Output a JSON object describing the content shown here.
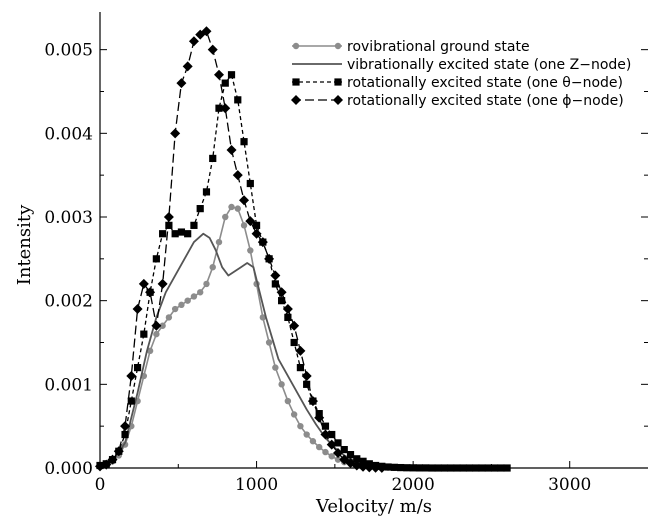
{
  "chart_data": {
    "type": "line",
    "xlabel": "Velocity/  m/s",
    "ylabel": "Intensity",
    "xlim": [
      0,
      3500
    ],
    "ylim": [
      0,
      0.00545
    ],
    "xticks": [
      0,
      1000,
      2000,
      3000
    ],
    "xtick_labels": [
      "0",
      "1000",
      "2000",
      "3000"
    ],
    "yticks": [
      0.0,
      0.001,
      0.002,
      0.003,
      0.004,
      0.005
    ],
    "ytick_labels": [
      "0.000",
      "0.001",
      "0.002",
      "0.003",
      "0.004",
      "0.005"
    ],
    "grid": false,
    "legend_position": "top-right",
    "series": [
      {
        "name": "rovibrational ground state",
        "style": "solid-circle",
        "color": "#8c8c8c",
        "points": [
          [
            0,
            2e-05
          ],
          [
            40,
            4e-05
          ],
          [
            80,
            8e-05
          ],
          [
            120,
            0.00015
          ],
          [
            160,
            0.00028
          ],
          [
            200,
            0.0005
          ],
          [
            240,
            0.0008
          ],
          [
            280,
            0.0011
          ],
          [
            320,
            0.0014
          ],
          [
            360,
            0.0016
          ],
          [
            400,
            0.0017
          ],
          [
            440,
            0.0018
          ],
          [
            480,
            0.0019
          ],
          [
            520,
            0.00195
          ],
          [
            560,
            0.002
          ],
          [
            600,
            0.00205
          ],
          [
            640,
            0.0021
          ],
          [
            680,
            0.0022
          ],
          [
            720,
            0.0024
          ],
          [
            760,
            0.0027
          ],
          [
            800,
            0.003
          ],
          [
            840,
            0.00312
          ],
          [
            880,
            0.0031
          ],
          [
            920,
            0.0029
          ],
          [
            960,
            0.0026
          ],
          [
            1000,
            0.0022
          ],
          [
            1040,
            0.0018
          ],
          [
            1080,
            0.0015
          ],
          [
            1120,
            0.0012
          ],
          [
            1160,
            0.001
          ],
          [
            1200,
            0.0008
          ],
          [
            1240,
            0.00064
          ],
          [
            1280,
            0.0005
          ],
          [
            1320,
            0.0004
          ],
          [
            1360,
            0.00032
          ],
          [
            1400,
            0.00025
          ],
          [
            1440,
            0.00019
          ],
          [
            1480,
            0.00014
          ],
          [
            1520,
            0.0001
          ],
          [
            1560,
            7e-05
          ],
          [
            1600,
            5e-05
          ],
          [
            1640,
            3.5e-05
          ],
          [
            1680,
            2.5e-05
          ],
          [
            1720,
            1.7e-05
          ],
          [
            1760,
            1e-05
          ],
          [
            1800,
            6e-06
          ],
          [
            1840,
            4e-06
          ],
          [
            1880,
            2e-06
          ],
          [
            1920,
            1e-06
          ],
          [
            1960,
            0.0
          ]
        ]
      },
      {
        "name": "vibrationally excited state (one Z−node)",
        "style": "solid",
        "color": "#555555",
        "points": [
          [
            0,
            2e-05
          ],
          [
            80,
            8e-05
          ],
          [
            160,
            0.0003
          ],
          [
            240,
            0.0009
          ],
          [
            300,
            0.0014
          ],
          [
            360,
            0.0018
          ],
          [
            420,
            0.0021
          ],
          [
            480,
            0.0023
          ],
          [
            540,
            0.0025
          ],
          [
            600,
            0.0027
          ],
          [
            660,
            0.0028
          ],
          [
            700,
            0.00275
          ],
          [
            740,
            0.0026
          ],
          [
            780,
            0.0024
          ],
          [
            820,
            0.0023
          ],
          [
            860,
            0.00235
          ],
          [
            900,
            0.0024
          ],
          [
            940,
            0.00245
          ],
          [
            980,
            0.0024
          ],
          [
            1020,
            0.0021
          ],
          [
            1060,
            0.0018
          ],
          [
            1100,
            0.00155
          ],
          [
            1140,
            0.0013
          ],
          [
            1200,
            0.0011
          ],
          [
            1260,
            0.0009
          ],
          [
            1320,
            0.0007
          ],
          [
            1380,
            0.00052
          ],
          [
            1440,
            0.00036
          ],
          [
            1500,
            0.00024
          ],
          [
            1560,
            0.00015
          ],
          [
            1620,
            9e-05
          ],
          [
            1680,
            5e-05
          ],
          [
            1740,
            3e-05
          ],
          [
            1800,
            1.5e-05
          ],
          [
            1880,
            6e-06
          ],
          [
            1960,
            0.0
          ]
        ]
      },
      {
        "name": "rotationally excited state (one θ−node)",
        "style": "dashed-square",
        "color": "#000000",
        "points": [
          [
            0,
            3e-05
          ],
          [
            40,
            5e-05
          ],
          [
            80,
            0.0001
          ],
          [
            120,
            0.0002
          ],
          [
            160,
            0.0004
          ],
          [
            200,
            0.0008
          ],
          [
            240,
            0.0012
          ],
          [
            280,
            0.0016
          ],
          [
            320,
            0.0021
          ],
          [
            360,
            0.0025
          ],
          [
            400,
            0.0028
          ],
          [
            440,
            0.0029
          ],
          [
            480,
            0.0028
          ],
          [
            520,
            0.00282
          ],
          [
            560,
            0.0028
          ],
          [
            600,
            0.0029
          ],
          [
            640,
            0.0031
          ],
          [
            680,
            0.0033
          ],
          [
            720,
            0.0037
          ],
          [
            760,
            0.0043
          ],
          [
            800,
            0.0046
          ],
          [
            840,
            0.0047
          ],
          [
            880,
            0.0044
          ],
          [
            920,
            0.0039
          ],
          [
            960,
            0.0034
          ],
          [
            1000,
            0.0029
          ],
          [
            1040,
            0.0027
          ],
          [
            1080,
            0.0025
          ],
          [
            1120,
            0.0022
          ],
          [
            1160,
            0.002
          ],
          [
            1200,
            0.0018
          ],
          [
            1240,
            0.0015
          ],
          [
            1280,
            0.0012
          ],
          [
            1320,
            0.001
          ],
          [
            1360,
            0.0008
          ],
          [
            1400,
            0.00065
          ],
          [
            1440,
            0.0005
          ],
          [
            1480,
            0.0004
          ],
          [
            1520,
            0.0003
          ],
          [
            1560,
            0.00022
          ],
          [
            1600,
            0.00016
          ],
          [
            1640,
            0.00011
          ],
          [
            1680,
            8e-05
          ],
          [
            1720,
            5e-05
          ],
          [
            1760,
            3e-05
          ],
          [
            1800,
            2e-05
          ],
          [
            1840,
            1.2e-05
          ],
          [
            1880,
            8e-06
          ],
          [
            1920,
            5e-06
          ],
          [
            1960,
            3e-06
          ],
          [
            2000,
            2e-06
          ],
          [
            2040,
            1e-06
          ],
          [
            2080,
            1e-06
          ],
          [
            2120,
            0.0
          ],
          [
            2160,
            0.0
          ],
          [
            2200,
            0.0
          ],
          [
            2240,
            0.0
          ],
          [
            2280,
            0.0
          ],
          [
            2320,
            0.0
          ],
          [
            2360,
            0.0
          ],
          [
            2400,
            0.0
          ],
          [
            2440,
            0.0
          ],
          [
            2480,
            0.0
          ],
          [
            2520,
            0.0
          ],
          [
            2560,
            0.0
          ],
          [
            2600,
            0.0
          ]
        ]
      },
      {
        "name": "rotationally excited state (one ϕ−node)",
        "style": "longdash-diamond",
        "color": "#000000",
        "points": [
          [
            0,
            2e-05
          ],
          [
            40,
            4e-05
          ],
          [
            80,
            0.0001
          ],
          [
            120,
            0.0002
          ],
          [
            160,
            0.0005
          ],
          [
            200,
            0.0011
          ],
          [
            240,
            0.0019
          ],
          [
            280,
            0.0022
          ],
          [
            320,
            0.0021
          ],
          [
            360,
            0.0017
          ],
          [
            400,
            0.0022
          ],
          [
            440,
            0.003
          ],
          [
            480,
            0.004
          ],
          [
            520,
            0.0046
          ],
          [
            560,
            0.0048
          ],
          [
            600,
            0.0051
          ],
          [
            640,
            0.00518
          ],
          [
            680,
            0.00522
          ],
          [
            720,
            0.005
          ],
          [
            760,
            0.0047
          ],
          [
            800,
            0.0043
          ],
          [
            840,
            0.0038
          ],
          [
            880,
            0.0035
          ],
          [
            920,
            0.0032
          ],
          [
            960,
            0.00295
          ],
          [
            1000,
            0.0028
          ],
          [
            1040,
            0.0027
          ],
          [
            1080,
            0.0025
          ],
          [
            1120,
            0.0023
          ],
          [
            1160,
            0.0021
          ],
          [
            1200,
            0.0019
          ],
          [
            1240,
            0.0017
          ],
          [
            1280,
            0.0014
          ],
          [
            1320,
            0.0011
          ],
          [
            1360,
            0.0008
          ],
          [
            1400,
            0.0006
          ],
          [
            1440,
            0.0004
          ],
          [
            1480,
            0.00028
          ],
          [
            1520,
            0.00018
          ],
          [
            1560,
            0.0001
          ],
          [
            1600,
            6e-05
          ],
          [
            1640,
            3e-05
          ],
          [
            1680,
            1.5e-05
          ],
          [
            1720,
            8e-06
          ],
          [
            1760,
            3e-06
          ],
          [
            1800,
            1e-06
          ]
        ]
      }
    ]
  }
}
